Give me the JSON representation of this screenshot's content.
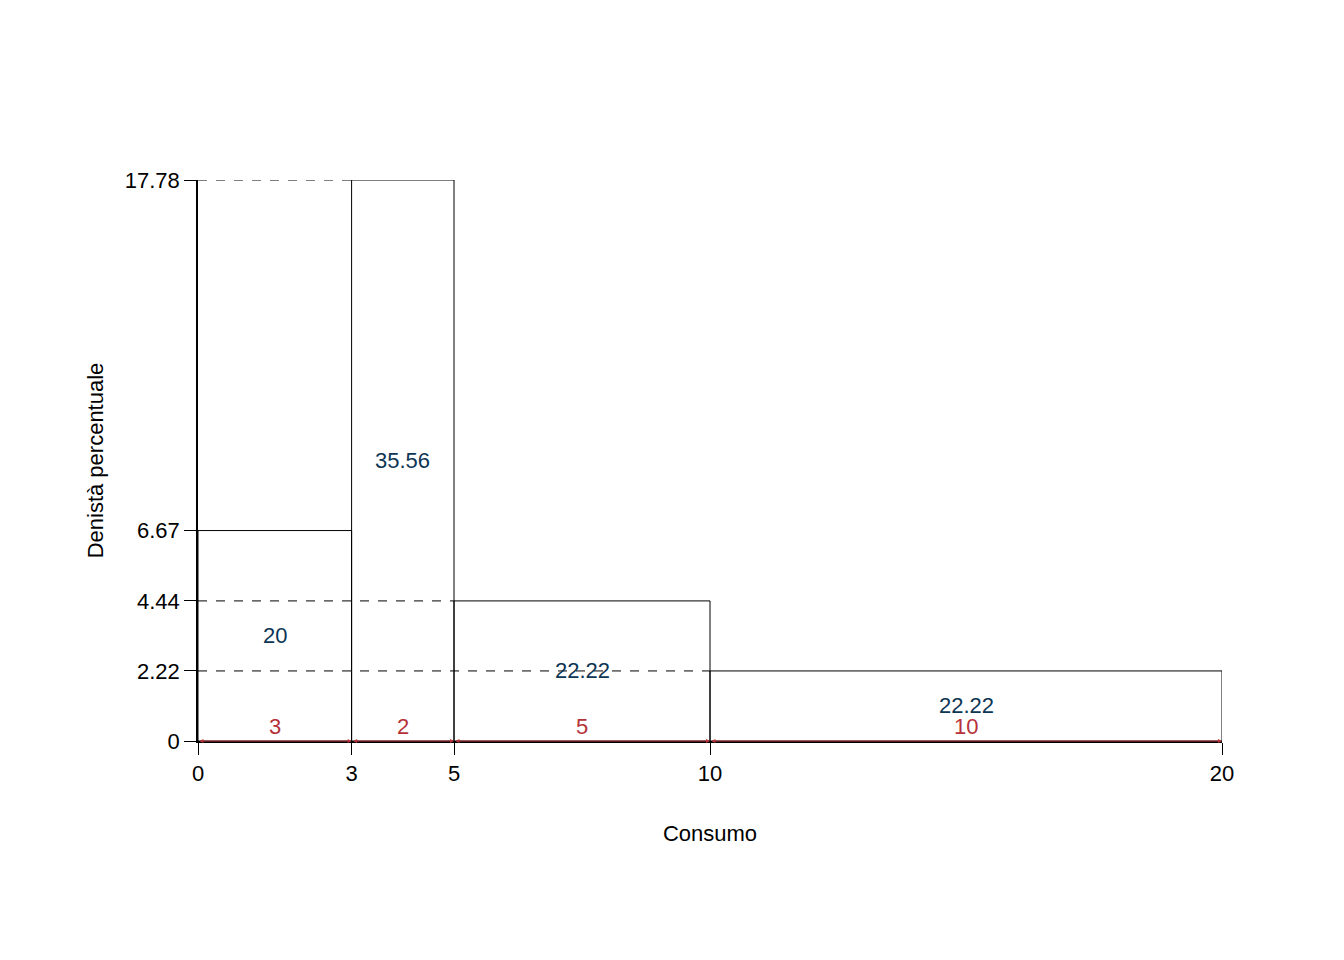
{
  "chart_data": {
    "type": "histogram",
    "xlabel": "Consumo",
    "ylabel": "Denistà percentuale",
    "bins": [
      0,
      3,
      5,
      10,
      20
    ],
    "values": [
      6.67,
      17.78,
      4.44,
      2.22
    ],
    "percent": [
      20,
      35.56,
      22.22,
      22.22
    ],
    "widths": [
      3,
      2,
      5,
      10
    ],
    "xlim": [
      0,
      20
    ],
    "ylim": [
      0,
      17.78
    ],
    "xticks": [
      0,
      3,
      5,
      10,
      20
    ],
    "yticks": [
      0,
      2.22,
      4.44,
      6.67,
      17.78
    ],
    "grid": false
  }
}
